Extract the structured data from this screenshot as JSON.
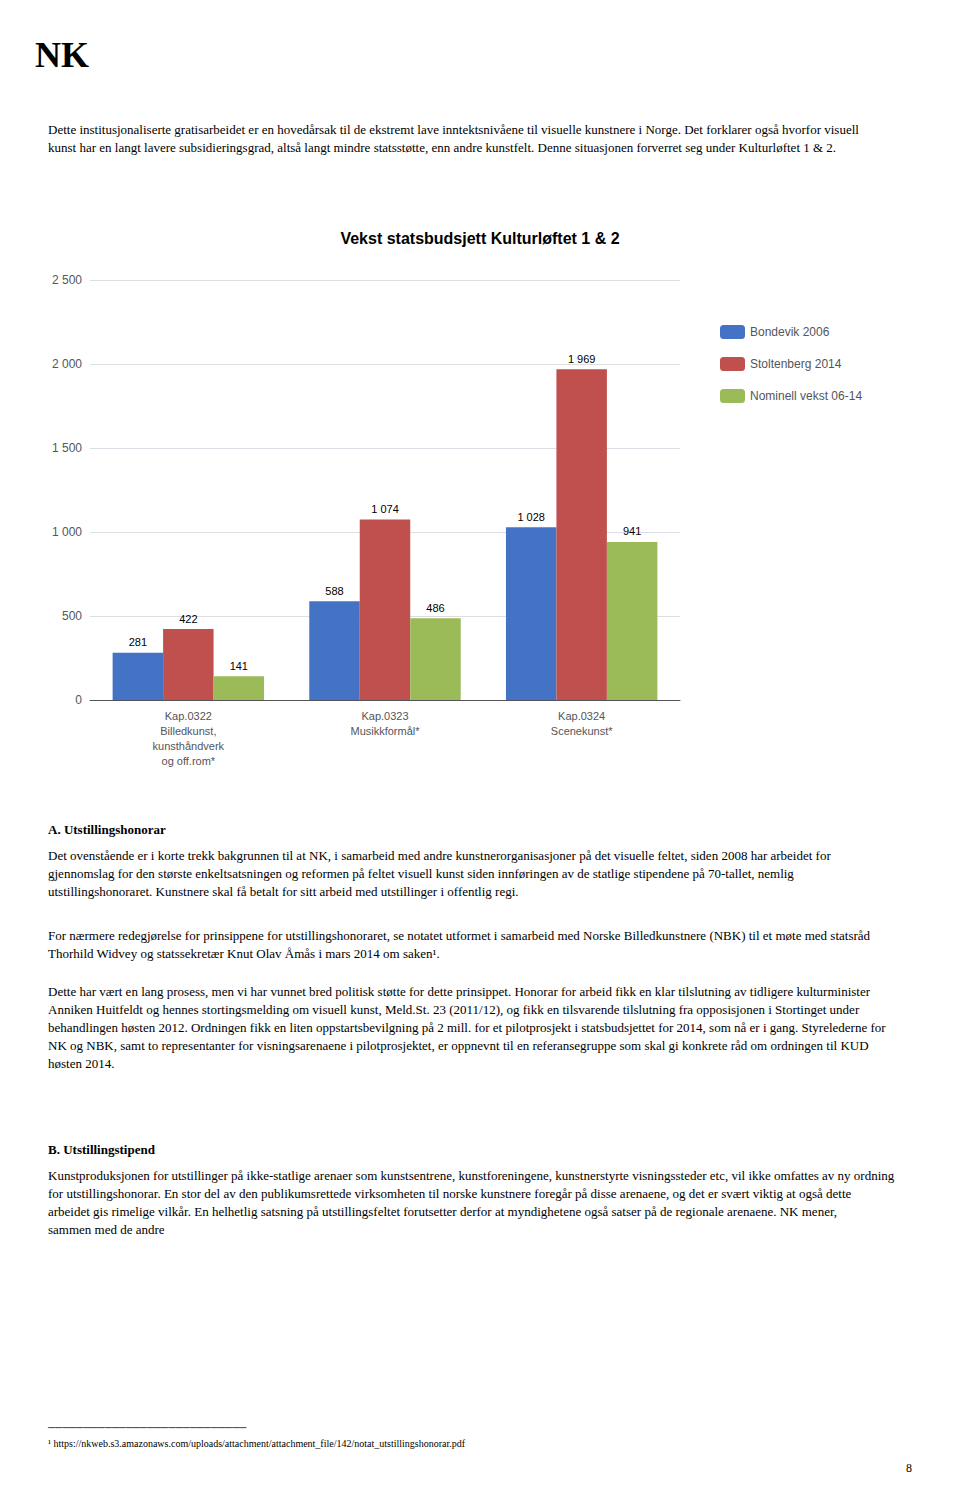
{
  "chart_data": {
    "type": "bar",
    "title": "Vekst statsbudsjett Kulturløftet 1 & 2",
    "categories": [
      "Kap.0322\nBilledkunst,\nkunsthåndverk\nog off.rom*",
      "Kap.0323\nMusikkformål*",
      "Kap.0324\nScenekunst*"
    ],
    "series": [
      {
        "name": "Bondevik 2006",
        "color": "#4472C4",
        "values": [
          281,
          588,
          1028
        ],
        "value_labels": [
          "281",
          "588",
          "1 028"
        ]
      },
      {
        "name": "Stoltenberg 2014",
        "color": "#C0504D",
        "values": [
          422,
          1074,
          1969
        ],
        "value_labels": [
          "422",
          "1 074",
          "1 969"
        ]
      },
      {
        "name": "Nominell vekst 06-14",
        "color": "#9BBB59",
        "values": [
          141,
          486,
          941
        ],
        "value_labels": [
          "141",
          "486",
          "941"
        ]
      }
    ],
    "ylim": [
      0,
      2500
    ],
    "yticks": [
      0,
      500,
      {
        "value": 1000,
        "label": "1 000"
      },
      {
        "value": 1500,
        "label": "1 500"
      },
      {
        "value": 2000,
        "label": "2 000"
      },
      {
        "value": 2500,
        "label": "2 500"
      }
    ],
    "grid": true,
    "legend": "right",
    "data_labels": true,
    "annotations": [
      "NK",
      "Dette institusjonaliserte gratisarbeidet er en hovedårsak til de ekstremt lave inntektsnivåene til visuelle kunstnere i Norge. Det forklarer også hvorfor visuell kunst har en langt lavere subsidieringsgrad, altså langt mindre statsstøtte, enn andre kunstfelt. Denne situasjonen forverret seg under Kulturløftet 1 & 2.",
      "A. Utstillingshonorar",
      "Det ovenstående er i korte trekk bakgrunnen til at NK, i samarbeid med andre kunstnerorganisasjoner på det visuelle feltet, siden 2008 har arbeidet for gjennomslag for den største enkeltsatsningen og reformen på feltet visuell kunst siden innføringen av de statlige stipendene på 70-tallet, nemlig utstillingshonoraret. Kunstnere skal få betalt for sitt arbeid med utstillinger i offentlig regi.",
      "For nærmere redegjørelse for prinsippene for utstillingshonoraret, se notatet utformet i samarbeid med Norske Billedkunstnere (NBK) til et møte med statsråd Thorhild Widvey og statssekretær Knut Olav Åmås i mars 2014 om saken¹.",
      "Dette har vært en lang prosess, men vi har vunnet bred politisk støtte for dette prinsippet. Honorar for arbeid fikk en klar tilslutning av tidligere kulturminister Anniken Huitfeldt og hennes stortingsmelding om visuell kunst, Meld.St. 23 (2011/12), og fikk en tilsvarende tilslutning fra opposisjonen i Stortinget under behandlingen høsten 2012. Ordningen fikk en liten oppstartsbevilgning på 2 mill. for et pilotprosjekt i statsbudsjettet for 2014, som nå er i gang. Styrelederne for NK og NBK, samt to representanter for visningsarenaene i pilotprosjektet, er oppnevnt til en referansegruppe som skal gi konkrete råd om ordningen til KUD høsten 2014.",
      "B. Utstillingstipend",
      "Kunstproduksjonen for utstillinger på ikke-statlige arenaer som kunstsentrene, kunstforeningene, kunstnerstyrte visningssteder etc, vil ikke omfattes av ny ordning for utstillingshonorar. En stor del av den publikumsrettede virksomheten til norske kunstnere foregår på disse arenaene, og det er svært viktig at også dette arbeidet gis rimelige vilkår. En helhetlig satsning på utstillingsfeltet forutsetter derfor at myndighetene også satser på de regionale arenaene. NK mener, sammen med de andre",
      "────────────────────────────",
      "¹ https://nkweb.s3.amazonaws.com/uploads/attachment/attachment_file/142/notat_utstillingshonorar.pdf",
      "8"
    ]
  }
}
